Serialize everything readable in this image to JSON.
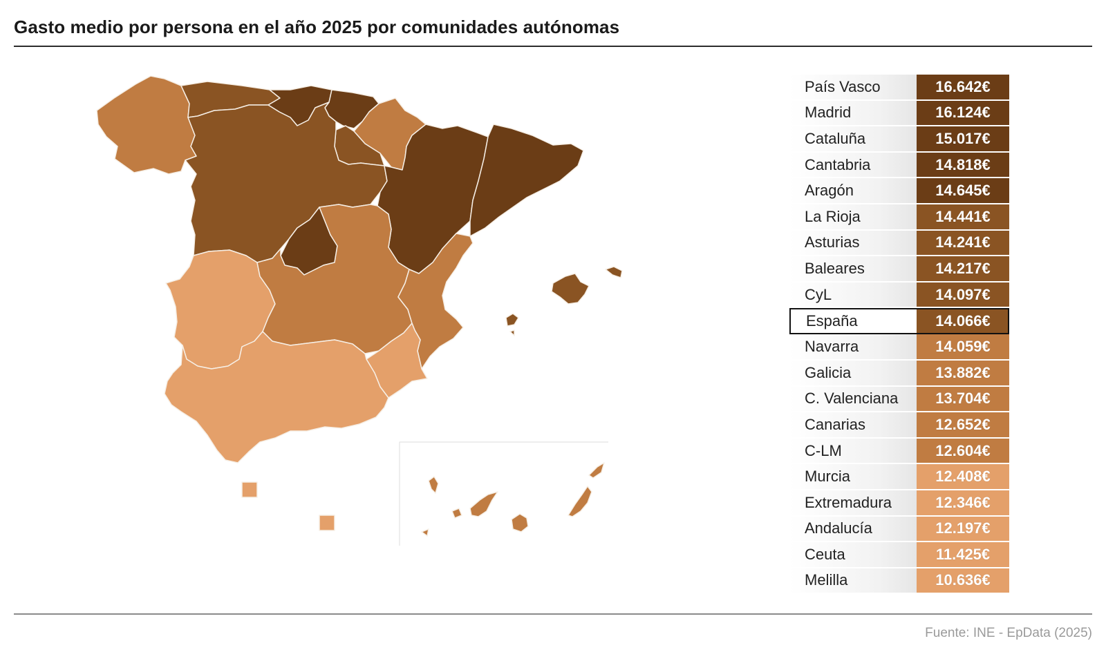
{
  "title": "Gasto medio por persona en el año 2025 por comunidades autónomas",
  "source": "Fuente: INE - EpData (2025)",
  "colors": {
    "level1": "#6b3d16",
    "level2": "#8a5423",
    "level3": "#c07c42",
    "level4": "#e4a06a"
  },
  "ranking": [
    {
      "name": "País Vasco",
      "value": "16.642€",
      "color": "#6b3d16"
    },
    {
      "name": "Madrid",
      "value": "16.124€",
      "color": "#6b3d16"
    },
    {
      "name": "Cataluña",
      "value": "15.017€",
      "color": "#6b3d16"
    },
    {
      "name": "Cantabria",
      "value": "14.818€",
      "color": "#6b3d16"
    },
    {
      "name": "Aragón",
      "value": "14.645€",
      "color": "#6b3d16"
    },
    {
      "name": "La Rioja",
      "value": "14.441€",
      "color": "#8a5423"
    },
    {
      "name": "Asturias",
      "value": "14.241€",
      "color": "#8a5423"
    },
    {
      "name": "Baleares",
      "value": "14.217€",
      "color": "#8a5423"
    },
    {
      "name": "CyL",
      "value": "14.097€",
      "color": "#8a5423"
    },
    {
      "name": "España",
      "value": "14.066€",
      "color": "#8a5423",
      "highlight": true
    },
    {
      "name": "Navarra",
      "value": "14.059€",
      "color": "#c07c42"
    },
    {
      "name": "Galicia",
      "value": "13.882€",
      "color": "#c07c42"
    },
    {
      "name": "C. Valenciana",
      "value": "13.704€",
      "color": "#c07c42"
    },
    {
      "name": "Canarias",
      "value": "12.652€",
      "color": "#c07c42"
    },
    {
      "name": "C-LM",
      "value": "12.604€",
      "color": "#c07c42"
    },
    {
      "name": "Murcia",
      "value": "12.408€",
      "color": "#e4a06a"
    },
    {
      "name": "Extremadura",
      "value": "12.346€",
      "color": "#e4a06a"
    },
    {
      "name": "Andalucía",
      "value": "12.197€",
      "color": "#e4a06a"
    },
    {
      "name": "Ceuta",
      "value": "11.425€",
      "color": "#e4a06a"
    },
    {
      "name": "Melilla",
      "value": "10.636€",
      "color": "#e4a06a"
    }
  ]
}
